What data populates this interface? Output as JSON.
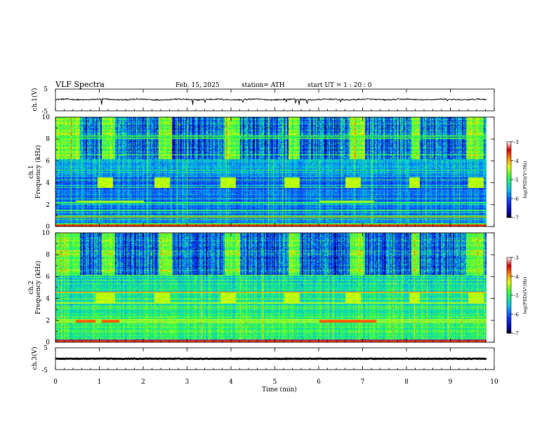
{
  "header": {
    "title": "VLF  Spectra",
    "date": "Feb. 15, 2025",
    "station": "station= ATH",
    "start": "start  UT  =   1  : 20 : 0"
  },
  "colors": {
    "deep_blue": "#0000a0",
    "blue": "#1a3cff",
    "cyan": "#00d0e0",
    "green": "#33ff33",
    "yellow": "#ffff00",
    "red": "#e00000",
    "pink": "#ffe0e0"
  },
  "chart_data": [
    {
      "type": "line",
      "name": "ch1-voltage",
      "ylabel": "ch.1(V)",
      "ylim": [
        -5,
        5
      ],
      "ticks": [
        "5",
        "-5"
      ],
      "x_range_min": [
        0,
        9.82
      ],
      "baseline_v": 0.2,
      "noise_amplitude_v": 0.5,
      "spikes_min": [
        1.05,
        3.13,
        3.4,
        4.27,
        5.27,
        5.48,
        5.55,
        5.73,
        6.5,
        8.93
      ]
    },
    {
      "type": "heatmap",
      "name": "ch1-spectrogram",
      "ylabel": "ch.1\nFrequency (kHz)",
      "ylim": [
        0,
        10
      ],
      "yticks": [
        "0",
        "2",
        "4",
        "6",
        "8",
        "10"
      ],
      "xlim": [
        0,
        10
      ],
      "data_end_min": 9.82,
      "colorbar": {
        "label": "log(PSD)(V²/Hz)",
        "range": [
          -7,
          -3
        ],
        "ticks": [
          "-3",
          "-4",
          "-5",
          "-6",
          "-7"
        ]
      },
      "bursts_min": [
        [
          0,
          0.55
        ],
        [
          1.05,
          1.35
        ],
        [
          2.35,
          2.65
        ],
        [
          3.85,
          4.2
        ],
        [
          5.3,
          5.55
        ],
        [
          6.7,
          7.05
        ],
        [
          8.1,
          8.3
        ],
        [
          9.35,
          9.75
        ]
      ],
      "tone_4kHz_segments_min": [
        [
          0.95,
          1.3
        ],
        [
          2.25,
          2.6
        ],
        [
          3.75,
          4.1
        ],
        [
          5.2,
          5.55
        ],
        [
          6.6,
          6.95
        ],
        [
          8.05,
          8.3
        ],
        [
          9.4,
          9.75
        ]
      ],
      "lines_khz": [
        0.3,
        0.7,
        1.0,
        1.5,
        2.2,
        3.6,
        4.3,
        5.2,
        6.6,
        8.1,
        8.3
      ],
      "tone_2_3kHz_segments_min": [
        [
          0.45,
          2.0
        ],
        [
          6.0,
          7.25
        ]
      ]
    },
    {
      "type": "heatmap",
      "name": "ch2-spectrogram",
      "ylabel": "ch.2\nFrequency (kHz)",
      "ylim": [
        0,
        10
      ],
      "yticks": [
        "0",
        "2",
        "4",
        "6",
        "8",
        "10"
      ],
      "xlim": [
        0,
        10
      ],
      "data_end_min": 9.82,
      "colorbar": {
        "label": "log(PSD)(V²/Hz)",
        "range": [
          -7,
          -3
        ],
        "ticks": [
          "-3",
          "-4",
          "-5",
          "-6",
          "-7"
        ]
      },
      "bursts_min": [
        [
          0,
          0.55
        ],
        [
          1.05,
          1.35
        ],
        [
          2.35,
          2.65
        ],
        [
          3.85,
          4.2
        ],
        [
          5.3,
          5.55
        ],
        [
          6.7,
          7.05
        ],
        [
          8.1,
          8.3
        ],
        [
          9.35,
          9.75
        ]
      ],
      "tone_4kHz_segments_min": [
        [
          0.9,
          1.35
        ],
        [
          2.25,
          2.6
        ],
        [
          3.75,
          4.1
        ],
        [
          5.2,
          5.55
        ],
        [
          6.6,
          6.95
        ],
        [
          8.05,
          8.3
        ],
        [
          9.4,
          9.75
        ]
      ],
      "strong_lines_khz": [
        1.9,
        2.1,
        3.6,
        4.6
      ],
      "red_segments_min": [
        [
          0.45,
          0.9
        ],
        [
          1.05,
          1.45
        ],
        [
          6.0,
          7.3
        ]
      ]
    },
    {
      "type": "line",
      "name": "ch3-voltage",
      "ylabel": "ch.3(V)",
      "ylim": [
        -5,
        5
      ],
      "ticks": [
        "5",
        "-5"
      ],
      "x_range_min": [
        0,
        9.82
      ],
      "baseline_v": 0.0,
      "xlabel": "Time  (min)",
      "xticks": [
        "0",
        "1",
        "2",
        "3",
        "4",
        "5",
        "6",
        "7",
        "8",
        "9",
        "10"
      ]
    }
  ]
}
